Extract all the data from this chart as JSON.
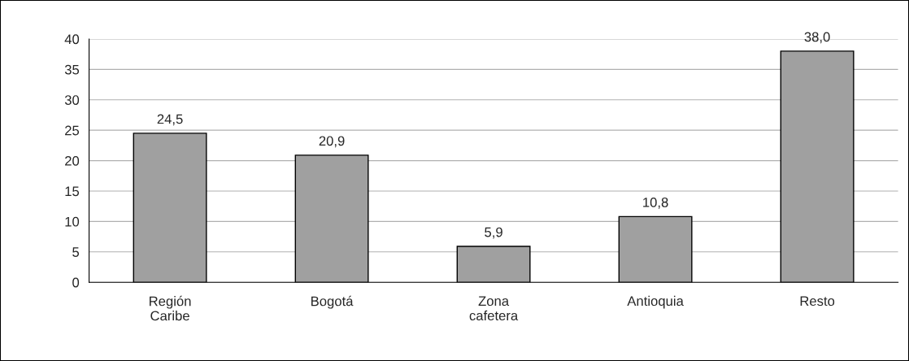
{
  "chart_data": {
    "type": "bar",
    "categories": [
      "Región\nCaribe",
      "Bogotá",
      "Zona\ncafetera",
      "Antioquia",
      "Resto"
    ],
    "values": [
      24.5,
      20.9,
      5.9,
      10.8,
      38.0
    ],
    "value_labels": [
      "24,5",
      "20,9",
      "5,9",
      "10,8",
      "38,0"
    ],
    "color": "#a0a0a0",
    "ylim": [
      0,
      40
    ],
    "yticks": [
      0,
      5,
      10,
      15,
      20,
      25,
      30,
      35,
      40
    ],
    "grid": "y",
    "legend": false
  }
}
